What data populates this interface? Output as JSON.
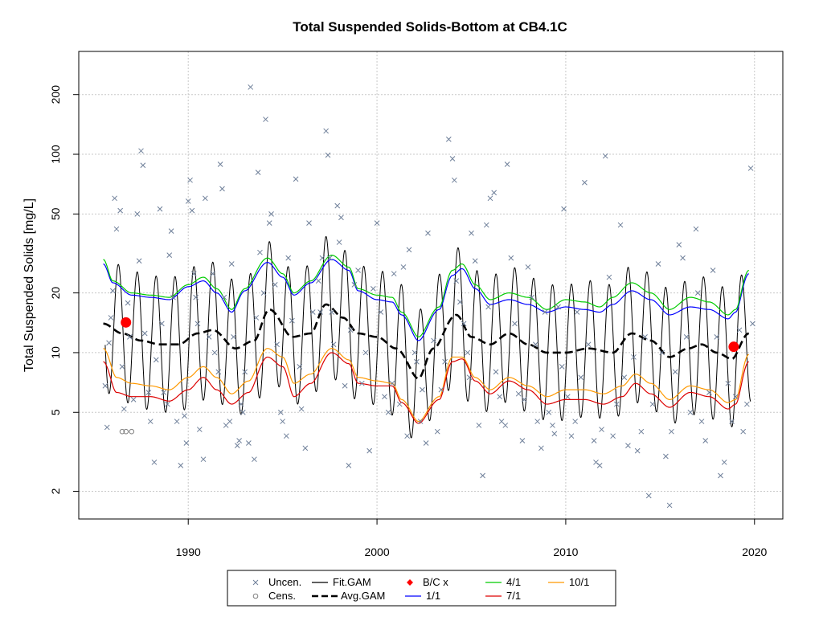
{
  "chart_data": {
    "type": "scatter",
    "title": "Total Suspended Solids-Bottom at CB4.1C",
    "ylabel": "Total Suspended Solids [mg/L]",
    "xlabel": "",
    "y_scale": "log",
    "xlim": [
      1984.2,
      2021.5
    ],
    "ylim": [
      1.45,
      330
    ],
    "grid": true,
    "legend_position": "bottom",
    "x_ticks": [
      {
        "value": 1990,
        "label": "1990"
      },
      {
        "value": 2000,
        "label": "2000"
      },
      {
        "value": 2010,
        "label": "2010"
      },
      {
        "value": 2020,
        "label": "2020"
      }
    ],
    "y_ticks": [
      {
        "value": 2,
        "label": "2"
      },
      {
        "value": 5,
        "label": "5"
      },
      {
        "value": 10,
        "label": "10"
      },
      {
        "value": 20,
        "label": "20"
      },
      {
        "value": 50,
        "label": "50"
      },
      {
        "value": 100,
        "label": "100"
      },
      {
        "value": 200,
        "label": "200"
      }
    ],
    "colors": {
      "uncensored": "#6e7f99",
      "censored": "#7f7f7f",
      "fit_gam": "#000000",
      "avg_gam": "#000000",
      "bc_marker": "#ff0000",
      "ratio_1_1": "#0000ff",
      "ratio_4_1": "#00cc00",
      "ratio_7_1": "#dd0000",
      "ratio_10_1": "#ff9900"
    },
    "legend": [
      {
        "key": "uncen",
        "label": "Uncen.",
        "marker": "x"
      },
      {
        "key": "cens",
        "label": "Cens.",
        "marker": "o"
      },
      {
        "key": "fit",
        "label": "Fit.GAM",
        "marker": "line"
      },
      {
        "key": "avg",
        "label": "Avg.GAM",
        "marker": "dashed"
      },
      {
        "key": "bc",
        "label": "B/C x",
        "marker": "diamond"
      },
      {
        "key": "r1",
        "label": "1/1",
        "marker": "line"
      },
      {
        "key": "r4",
        "label": "4/1",
        "marker": "line"
      },
      {
        "key": "r7",
        "label": "7/1",
        "marker": "line"
      },
      {
        "key": "r10",
        "label": "10/1",
        "marker": "line"
      }
    ],
    "bc_points": [
      [
        1986.7,
        14.2
      ],
      [
        2018.9,
        10.7
      ]
    ],
    "censored_points": [
      [
        1986.7,
        4.0
      ],
      [
        1987.0,
        4.0
      ],
      [
        1986.5,
        4.0
      ]
    ],
    "series": [
      {
        "name": "Avg.GAM",
        "x": [
          1985.5,
          1986.5,
          1987.5,
          1988.5,
          1989.5,
          1990.5,
          1991.3,
          1992.5,
          1993.5,
          1994.3,
          1995.5,
          1996.5,
          1997.3,
          1998.2,
          1999.0,
          2000.0,
          2001.0,
          2002.2,
          2003.0,
          2004.2,
          2005.0,
          2006.0,
          2007.0,
          2008.0,
          2009.0,
          2010.0,
          2011.2,
          2012.5,
          2013.5,
          2014.5,
          2015.5,
          2016.5,
          2017.2,
          2018.0,
          2018.8,
          2019.7
        ],
        "y": [
          14,
          12.5,
          11.5,
          11,
          11,
          12.5,
          13,
          10.5,
          11.5,
          16.5,
          12,
          12.5,
          17.5,
          15,
          12.5,
          12,
          10.5,
          7.4,
          10.5,
          15.5,
          12,
          11,
          12.5,
          11,
          10,
          10,
          10.5,
          10,
          12.5,
          11.5,
          9.5,
          10.5,
          11,
          10,
          9.3,
          12.5
        ]
      },
      {
        "name": "4/1",
        "x": [
          1985.5,
          1986.0,
          1987.0,
          1988.0,
          1989.0,
          1990.0,
          1990.8,
          1991.5,
          1992.3,
          1993.0,
          1994.2,
          1995.0,
          1995.6,
          1996.5,
          1997.6,
          1998.5,
          1999.0,
          2000.0,
          2000.8,
          2001.3,
          2002.2,
          2003.3,
          2004.0,
          2004.5,
          2005.2,
          2006.0,
          2007.0,
          2008.0,
          2009.0,
          2010.0,
          2011.0,
          2011.8,
          2012.5,
          2013.5,
          2014.5,
          2015.5,
          2016.6,
          2017.6,
          2018.6,
          2019.0,
          2019.7
        ],
        "y": [
          29.5,
          23,
          20,
          19.5,
          19,
          22,
          24,
          21,
          16.5,
          21,
          30,
          25,
          20,
          23,
          31,
          27,
          21,
          19.5,
          19,
          16,
          12,
          17,
          26,
          28,
          22,
          18.5,
          20,
          19,
          16.5,
          18.5,
          18,
          17,
          19,
          22.5,
          20,
          16.5,
          19,
          18,
          15.5,
          16.5,
          26
        ]
      },
      {
        "name": "1/1",
        "x": [
          1985.5,
          1986.0,
          1987.0,
          1988.0,
          1989.0,
          1990.0,
          1990.8,
          1991.5,
          1992.3,
          1993.0,
          1994.2,
          1995.0,
          1995.6,
          1996.5,
          1997.6,
          1998.5,
          1999.0,
          2000.0,
          2000.8,
          2001.3,
          2002.2,
          2003.3,
          2004.0,
          2004.5,
          2005.2,
          2006.0,
          2007.0,
          2008.0,
          2009.0,
          2010.0,
          2011.0,
          2011.8,
          2012.5,
          2013.5,
          2014.5,
          2015.5,
          2016.6,
          2017.6,
          2018.6,
          2019.0,
          2019.7
        ],
        "y": [
          28,
          22.5,
          19.5,
          19,
          18.5,
          21.5,
          23,
          20,
          16,
          20.5,
          28.5,
          24,
          19.5,
          22.5,
          29.5,
          26,
          20.5,
          18.5,
          18,
          15.5,
          11.5,
          16.5,
          24.5,
          26.5,
          21,
          17.5,
          18.5,
          17.5,
          16,
          17,
          16.5,
          16,
          17.5,
          20.5,
          18.5,
          15.5,
          17,
          16.5,
          14.8,
          16,
          25
        ]
      },
      {
        "name": "10/1",
        "x": [
          1985.5,
          1986.2,
          1987.0,
          1988.0,
          1989.0,
          1990.0,
          1990.8,
          1991.5,
          1992.3,
          1993.2,
          1994.2,
          1995.0,
          1995.6,
          1996.5,
          1997.6,
          1998.5,
          1999.0,
          2000.0,
          2000.8,
          2001.3,
          2002.2,
          2003.3,
          2004.0,
          2004.5,
          2005.2,
          2006.0,
          2007.0,
          2008.0,
          2009.0,
          2010.0,
          2011.0,
          2012.0,
          2013.0,
          2013.7,
          2014.5,
          2015.5,
          2016.6,
          2017.6,
          2018.6,
          2019.0,
          2019.7
        ],
        "y": [
          10.5,
          7.5,
          7,
          6.8,
          6.5,
          7.5,
          8.5,
          7.5,
          6.2,
          7.2,
          10.5,
          9.5,
          7,
          7.8,
          10.5,
          9.2,
          7.5,
          7.2,
          7,
          5.8,
          4.5,
          6,
          9.5,
          9.5,
          7.5,
          6.5,
          7.5,
          6.8,
          6,
          6.5,
          6.5,
          6.2,
          6.8,
          7.8,
          7,
          5.8,
          6.8,
          6.5,
          5.6,
          5.8,
          9.8
        ]
      },
      {
        "name": "7/1",
        "x": [
          1985.5,
          1986.2,
          1987.0,
          1988.0,
          1989.0,
          1990.0,
          1990.8,
          1991.5,
          1992.3,
          1993.2,
          1994.2,
          1995.0,
          1995.6,
          1996.5,
          1997.6,
          1998.5,
          1999.0,
          2000.0,
          2000.8,
          2001.3,
          2002.2,
          2003.3,
          2004.0,
          2004.5,
          2005.2,
          2006.0,
          2007.0,
          2008.0,
          2009.0,
          2010.0,
          2011.0,
          2012.0,
          2013.0,
          2013.7,
          2014.5,
          2015.5,
          2016.6,
          2017.6,
          2018.6,
          2019.0,
          2019.7
        ],
        "y": [
          9,
          6.3,
          6,
          6,
          5.7,
          6.5,
          7.5,
          6.5,
          5.5,
          6.3,
          9.5,
          8.5,
          6,
          7,
          10,
          8.8,
          7,
          6.8,
          6.8,
          5.6,
          4.4,
          5.8,
          9,
          9.3,
          7.2,
          6.2,
          7.2,
          6.5,
          5.5,
          5.8,
          5.8,
          5.5,
          6,
          7,
          6.2,
          5.3,
          6.3,
          6,
          5.2,
          5.5,
          9
        ]
      },
      {
        "name": "Fit.GAM",
        "trend": "Avg.GAM",
        "seasonal_amplitude": 2.2,
        "period": 1.0,
        "x_start": 1985.6,
        "x_end": 2019.8
      }
    ],
    "uncensored_points": [
      [
        1985.6,
        6.8
      ],
      [
        1985.8,
        11.2
      ],
      [
        1985.7,
        4.2
      ],
      [
        1985.9,
        15
      ],
      [
        1986.0,
        20.5
      ],
      [
        1986.1,
        60
      ],
      [
        1986.2,
        42
      ],
      [
        1986.4,
        52
      ],
      [
        1986.5,
        8.5
      ],
      [
        1986.6,
        5.2
      ],
      [
        1986.8,
        17.8
      ],
      [
        1986.9,
        12
      ],
      [
        1987.1,
        5.8
      ],
      [
        1987.3,
        50
      ],
      [
        1987.4,
        29
      ],
      [
        1987.5,
        104
      ],
      [
        1987.6,
        88
      ],
      [
        1987.7,
        12.5
      ],
      [
        1987.9,
        6.3
      ],
      [
        1988.0,
        4.5
      ],
      [
        1988.2,
        2.8
      ],
      [
        1988.3,
        9.2
      ],
      [
        1988.5,
        53
      ],
      [
        1988.6,
        14
      ],
      [
        1988.7,
        6.3
      ],
      [
        1988.9,
        5.5
      ],
      [
        1989.0,
        31
      ],
      [
        1989.1,
        41
      ],
      [
        1989.2,
        19
      ],
      [
        1989.4,
        4.5
      ],
      [
        1989.6,
        2.7
      ],
      [
        1989.8,
        4.8
      ],
      [
        1989.9,
        3.5
      ],
      [
        1990.0,
        58
      ],
      [
        1990.1,
        74
      ],
      [
        1990.2,
        52
      ],
      [
        1990.3,
        25
      ],
      [
        1990.4,
        19
      ],
      [
        1990.5,
        14
      ],
      [
        1990.6,
        4.1
      ],
      [
        1990.8,
        2.9
      ],
      [
        1990.9,
        60
      ],
      [
        1991.1,
        12
      ],
      [
        1991.3,
        25
      ],
      [
        1991.4,
        10
      ],
      [
        1991.6,
        8
      ],
      [
        1991.7,
        89
      ],
      [
        1991.8,
        67
      ],
      [
        1991.9,
        19
      ],
      [
        1992.0,
        4.3
      ],
      [
        1992.2,
        4.5
      ],
      [
        1992.3,
        28
      ],
      [
        1992.4,
        12
      ],
      [
        1992.6,
        3.4
      ],
      [
        1992.7,
        3.6
      ],
      [
        1992.8,
        5.5
      ],
      [
        1992.9,
        5
      ],
      [
        1993.0,
        8
      ],
      [
        1993.2,
        3.5
      ],
      [
        1993.3,
        218
      ],
      [
        1993.5,
        2.9
      ],
      [
        1993.6,
        15
      ],
      [
        1993.7,
        81
      ],
      [
        1993.8,
        32
      ],
      [
        1994.0,
        20
      ],
      [
        1994.1,
        150
      ],
      [
        1994.3,
        45
      ],
      [
        1994.4,
        50
      ],
      [
        1994.6,
        22
      ],
      [
        1994.7,
        11
      ],
      [
        1994.9,
        5
      ],
      [
        1995.0,
        4.5
      ],
      [
        1995.2,
        3.8
      ],
      [
        1995.3,
        30
      ],
      [
        1995.5,
        14.5
      ],
      [
        1995.7,
        75
      ],
      [
        1995.9,
        8.5
      ],
      [
        1996.0,
        5.2
      ],
      [
        1996.2,
        3.3
      ],
      [
        1996.4,
        45
      ],
      [
        1996.6,
        16
      ],
      [
        1996.9,
        23
      ],
      [
        1997.0,
        16
      ],
      [
        1997.1,
        30
      ],
      [
        1997.3,
        131
      ],
      [
        1997.4,
        99
      ],
      [
        1997.5,
        30
      ],
      [
        1997.6,
        16
      ],
      [
        1997.7,
        11
      ],
      [
        1997.9,
        55
      ],
      [
        1998.0,
        36
      ],
      [
        1998.1,
        48
      ],
      [
        1998.3,
        6.8
      ],
      [
        1998.5,
        2.7
      ],
      [
        1998.6,
        13
      ],
      [
        1998.8,
        22
      ],
      [
        1999.0,
        26
      ],
      [
        1999.2,
        7
      ],
      [
        1999.4,
        10
      ],
      [
        1999.6,
        3.2
      ],
      [
        1999.8,
        21
      ],
      [
        2000.0,
        45
      ],
      [
        2000.2,
        16
      ],
      [
        2000.4,
        6
      ],
      [
        2000.6,
        5
      ],
      [
        2000.8,
        7
      ],
      [
        2000.9,
        25
      ],
      [
        2001.2,
        5.5
      ],
      [
        2001.4,
        27
      ],
      [
        2001.6,
        3.8
      ],
      [
        2001.7,
        33
      ],
      [
        2002.0,
        10
      ],
      [
        2002.1,
        9
      ],
      [
        2002.3,
        4.5
      ],
      [
        2002.4,
        6.5
      ],
      [
        2002.6,
        3.5
      ],
      [
        2002.7,
        40
      ],
      [
        2003.0,
        11.5
      ],
      [
        2003.2,
        4
      ],
      [
        2003.4,
        6.5
      ],
      [
        2003.6,
        9
      ],
      [
        2003.8,
        119
      ],
      [
        2004.0,
        95
      ],
      [
        2004.1,
        74
      ],
      [
        2004.2,
        23
      ],
      [
        2004.4,
        18
      ],
      [
        2004.6,
        14
      ],
      [
        2004.8,
        10
      ],
      [
        2004.9,
        7.5
      ],
      [
        2005.0,
        40
      ],
      [
        2005.2,
        29
      ],
      [
        2005.4,
        4.3
      ],
      [
        2005.6,
        2.4
      ],
      [
        2005.8,
        44
      ],
      [
        2005.9,
        17
      ],
      [
        2006.0,
        60
      ],
      [
        2006.2,
        64
      ],
      [
        2006.3,
        8
      ],
      [
        2006.5,
        6
      ],
      [
        2006.6,
        4.5
      ],
      [
        2006.8,
        4.3
      ],
      [
        2006.9,
        89
      ],
      [
        2007.1,
        30
      ],
      [
        2007.3,
        14
      ],
      [
        2007.5,
        6.2
      ],
      [
        2007.7,
        3.6
      ],
      [
        2007.8,
        5.8
      ],
      [
        2008.0,
        27
      ],
      [
        2008.2,
        19
      ],
      [
        2008.4,
        11
      ],
      [
        2008.5,
        4.5
      ],
      [
        2008.7,
        3.3
      ],
      [
        2008.9,
        16
      ],
      [
        2009.1,
        5
      ],
      [
        2009.3,
        4.3
      ],
      [
        2009.4,
        3.9
      ],
      [
        2009.6,
        17
      ],
      [
        2009.8,
        8.5
      ],
      [
        2009.9,
        53
      ],
      [
        2010.1,
        6
      ],
      [
        2010.3,
        3.8
      ],
      [
        2010.5,
        4.5
      ],
      [
        2010.6,
        16
      ],
      [
        2010.8,
        7.5
      ],
      [
        2011.0,
        72
      ],
      [
        2011.2,
        11
      ],
      [
        2011.5,
        3.6
      ],
      [
        2011.6,
        2.8
      ],
      [
        2011.8,
        2.7
      ],
      [
        2011.9,
        4.1
      ],
      [
        2012.1,
        98
      ],
      [
        2012.3,
        24
      ],
      [
        2012.5,
        3.8
      ],
      [
        2012.7,
        5.5
      ],
      [
        2012.9,
        44
      ],
      [
        2013.1,
        7.5
      ],
      [
        2013.3,
        3.4
      ],
      [
        2013.6,
        9.5
      ],
      [
        2013.8,
        3.2
      ],
      [
        2014.0,
        4
      ],
      [
        2014.2,
        12
      ],
      [
        2014.4,
        1.9
      ],
      [
        2014.6,
        5.5
      ],
      [
        2014.9,
        28
      ],
      [
        2015.1,
        10
      ],
      [
        2015.3,
        3
      ],
      [
        2015.5,
        1.7
      ],
      [
        2015.6,
        4
      ],
      [
        2015.8,
        8
      ],
      [
        2016.0,
        35
      ],
      [
        2016.2,
        30
      ],
      [
        2016.4,
        12
      ],
      [
        2016.6,
        5
      ],
      [
        2016.9,
        42
      ],
      [
        2017.0,
        20
      ],
      [
        2017.2,
        4.5
      ],
      [
        2017.4,
        3.6
      ],
      [
        2017.6,
        6.3
      ],
      [
        2017.8,
        26
      ],
      [
        2018.0,
        12
      ],
      [
        2018.2,
        2.4
      ],
      [
        2018.4,
        2.8
      ],
      [
        2018.6,
        7
      ],
      [
        2018.8,
        4.5
      ],
      [
        2019.0,
        6
      ],
      [
        2019.2,
        13
      ],
      [
        2019.4,
        4
      ],
      [
        2019.6,
        5.5
      ],
      [
        2019.8,
        85
      ],
      [
        2019.9,
        14
      ]
    ]
  }
}
